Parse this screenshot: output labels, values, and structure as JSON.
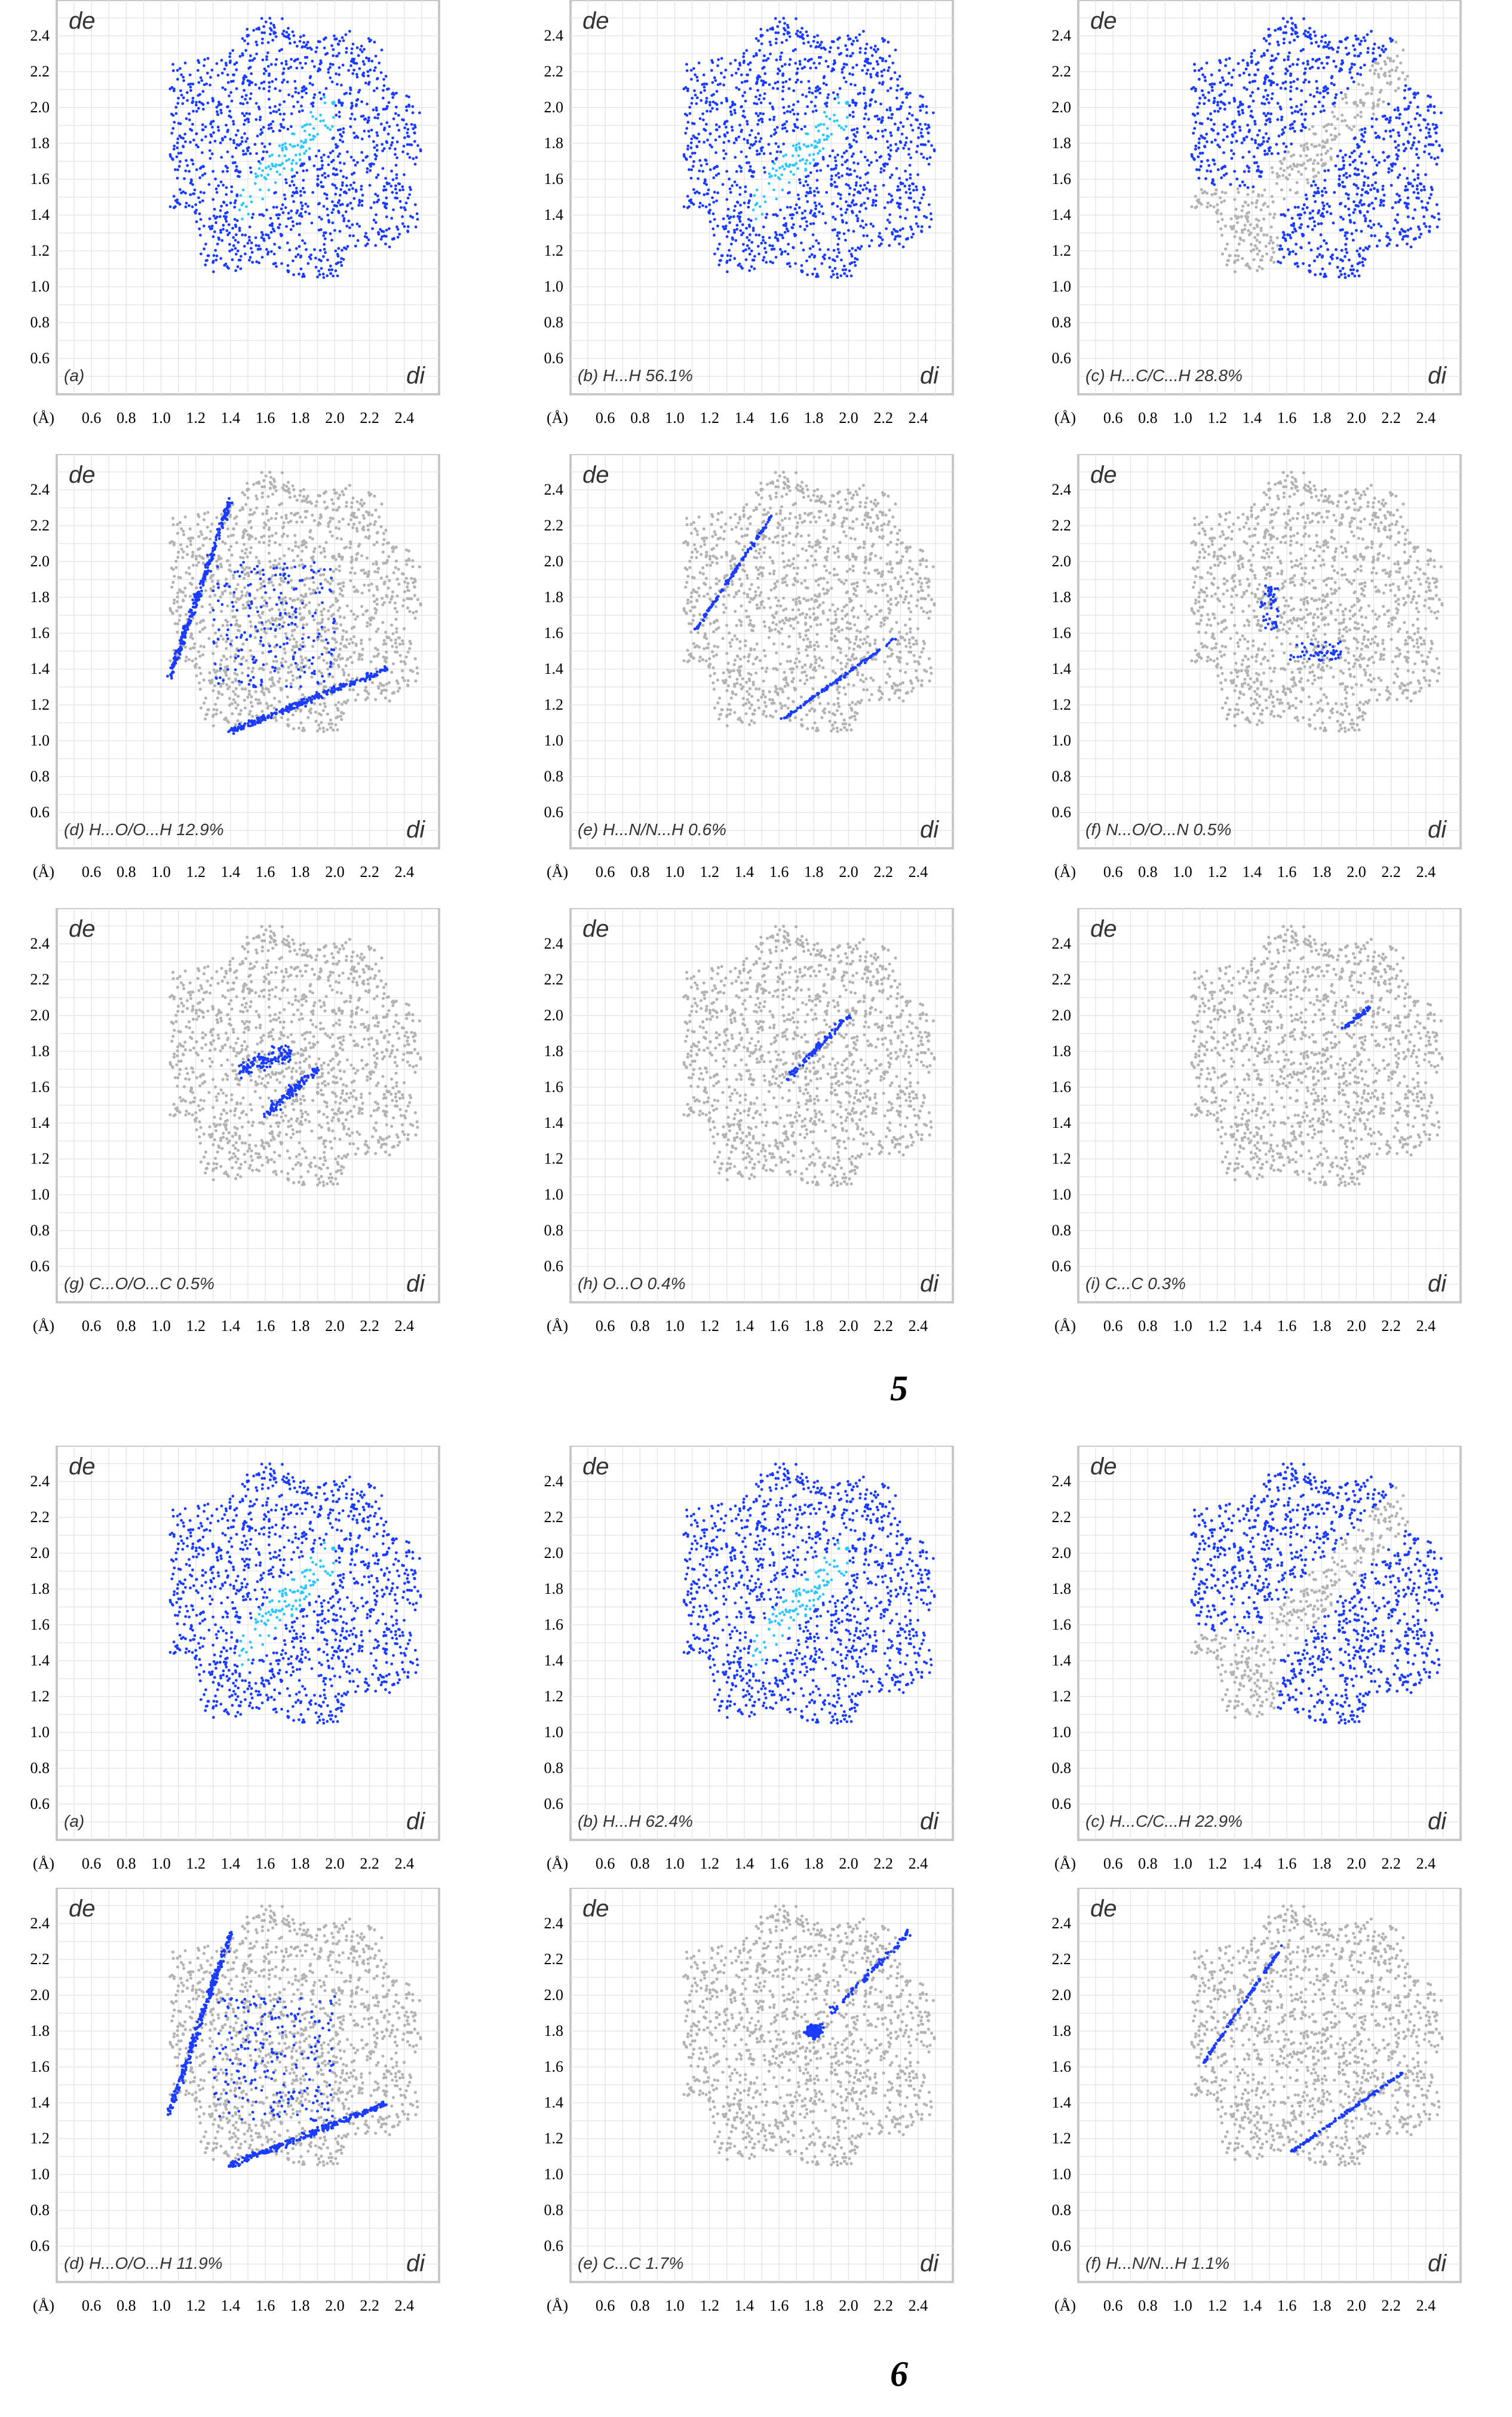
{
  "axes": {
    "y_axis_label": "de",
    "x_axis_label": "di",
    "unit_label": "(Å)",
    "y_ticks": [
      "0.6",
      "0.8",
      "1.0",
      "1.2",
      "1.4",
      "1.6",
      "1.8",
      "2.0",
      "2.2",
      "2.4"
    ],
    "x_ticks": [
      "0.6",
      "0.8",
      "1.0",
      "1.2",
      "1.4",
      "1.6",
      "1.8",
      "2.0",
      "2.2",
      "2.4"
    ]
  },
  "colors": {
    "highlight": "#1a3cff",
    "highlight_core": "#2ec8ff",
    "background_points": "#b3b3b3",
    "frame": "#9a9a9a",
    "grid": "#e2e2e2"
  },
  "compound_labels": [
    "5",
    "6"
  ],
  "chart_data": [
    {
      "type": "scatter",
      "compound": "5",
      "panel": "(a)",
      "contact": "",
      "percent": "",
      "highlight": "full",
      "xlim": [
        0.4,
        2.6
      ],
      "ylim": [
        0.4,
        2.6
      ]
    },
    {
      "type": "scatter",
      "compound": "5",
      "panel": "(b)",
      "contact": "H...H",
      "percent": "56.1%",
      "highlight": "full",
      "xlim": [
        0.4,
        2.6
      ],
      "ylim": [
        0.4,
        2.6
      ]
    },
    {
      "type": "scatter",
      "compound": "5",
      "panel": "(c)",
      "contact": "H...C/C...H",
      "percent": "28.8%",
      "highlight": "wings",
      "xlim": [
        0.4,
        2.6
      ],
      "ylim": [
        0.4,
        2.6
      ]
    },
    {
      "type": "scatter",
      "compound": "5",
      "panel": "(d)",
      "contact": "H...O/O...H",
      "percent": "12.9%",
      "highlight": "spikes",
      "xlim": [
        0.4,
        2.6
      ],
      "ylim": [
        0.4,
        2.6
      ]
    },
    {
      "type": "scatter",
      "compound": "5",
      "panel": "(e)",
      "contact": "H...N/N...H",
      "percent": "0.6%",
      "highlight": "thin-wings",
      "xlim": [
        0.4,
        2.6
      ],
      "ylim": [
        0.4,
        2.6
      ]
    },
    {
      "type": "scatter",
      "compound": "5",
      "panel": "(f)",
      "contact": "N...O/O...N",
      "percent": "0.5%",
      "highlight": "small-pair",
      "xlim": [
        0.4,
        2.6
      ],
      "ylim": [
        0.4,
        2.6
      ]
    },
    {
      "type": "scatter",
      "compound": "5",
      "panel": "(g)",
      "contact": "C...O/O...C",
      "percent": "0.5%",
      "highlight": "butterfly",
      "xlim": [
        0.4,
        2.6
      ],
      "ylim": [
        0.4,
        2.6
      ]
    },
    {
      "type": "scatter",
      "compound": "5",
      "panel": "(h)",
      "contact": "O...O",
      "percent": "0.4%",
      "highlight": "diag-small",
      "xlim": [
        0.4,
        2.6
      ],
      "ylim": [
        0.4,
        2.6
      ]
    },
    {
      "type": "scatter",
      "compound": "5",
      "panel": "(i)",
      "contact": "C...C",
      "percent": "0.3%",
      "highlight": "tiny",
      "xlim": [
        0.4,
        2.6
      ],
      "ylim": [
        0.4,
        2.6
      ]
    },
    {
      "type": "scatter",
      "compound": "6",
      "panel": "(a)",
      "contact": "",
      "percent": "",
      "highlight": "full",
      "xlim": [
        0.4,
        2.6
      ],
      "ylim": [
        0.4,
        2.6
      ]
    },
    {
      "type": "scatter",
      "compound": "6",
      "panel": "(b)",
      "contact": "H...H",
      "percent": "62.4%",
      "highlight": "full",
      "xlim": [
        0.4,
        2.6
      ],
      "ylim": [
        0.4,
        2.6
      ]
    },
    {
      "type": "scatter",
      "compound": "6",
      "panel": "(c)",
      "contact": "H...C/C...H",
      "percent": "22.9%",
      "highlight": "wings",
      "xlim": [
        0.4,
        2.6
      ],
      "ylim": [
        0.4,
        2.6
      ]
    },
    {
      "type": "scatter",
      "compound": "6",
      "panel": "(d)",
      "contact": "H...O/O...H",
      "percent": "11.9%",
      "highlight": "spikes",
      "xlim": [
        0.4,
        2.6
      ],
      "ylim": [
        0.4,
        2.6
      ]
    },
    {
      "type": "scatter",
      "compound": "6",
      "panel": "(e)",
      "contact": "C...C",
      "percent": "1.7%",
      "highlight": "cc-blob",
      "xlim": [
        0.4,
        2.6
      ],
      "ylim": [
        0.4,
        2.6
      ]
    },
    {
      "type": "scatter",
      "compound": "6",
      "panel": "(f)",
      "contact": "H...N/N...H",
      "percent": "1.1%",
      "highlight": "thin-wings",
      "xlim": [
        0.4,
        2.6
      ],
      "ylim": [
        0.4,
        2.6
      ]
    }
  ]
}
